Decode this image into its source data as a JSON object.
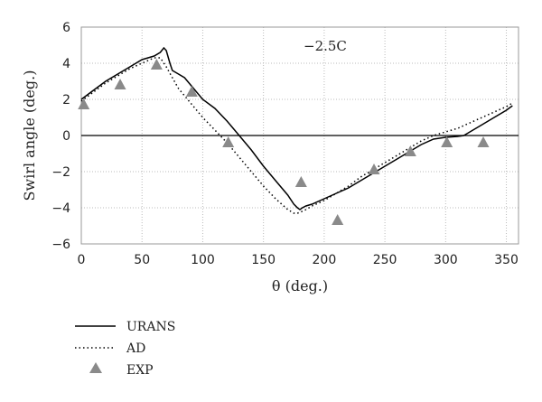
{
  "chart_data": {
    "type": "line",
    "annotation": "−2.5C",
    "xlabel": "θ (deg.)",
    "ylabel": "Swirl angle (deg.)",
    "xlim": [
      0,
      360
    ],
    "ylim": [
      -6,
      6
    ],
    "x_ticks": [
      "0",
      "50",
      "100",
      "150",
      "200",
      "250",
      "300",
      "350"
    ],
    "y_ticks": [
      "6",
      "4",
      "2",
      "0",
      "−2",
      "−4",
      "−6"
    ],
    "x_tick_values": [
      0,
      50,
      100,
      150,
      200,
      250,
      300,
      350
    ],
    "y_tick_values": [
      6,
      4,
      2,
      0,
      -2,
      -4,
      -6
    ],
    "grid": true,
    "legend_position": "bottom-left",
    "series": [
      {
        "name": "URANS",
        "style": "solid",
        "color": "#000000",
        "x": [
          0,
          10,
          20,
          30,
          40,
          50,
          60,
          65,
          68,
          70,
          73,
          75,
          80,
          85,
          90,
          95,
          100,
          110,
          120,
          130,
          140,
          150,
          160,
          170,
          175,
          178,
          180,
          182,
          185,
          190,
          200,
          210,
          220,
          230,
          240,
          250,
          260,
          270,
          280,
          290,
          300,
          310,
          315,
          320,
          330,
          340,
          350,
          355
        ],
        "y": [
          2.0,
          2.5,
          3.0,
          3.4,
          3.8,
          4.2,
          4.4,
          4.6,
          4.85,
          4.7,
          4.0,
          3.6,
          3.4,
          3.2,
          2.8,
          2.4,
          2.0,
          1.5,
          0.8,
          0.0,
          -0.8,
          -1.7,
          -2.5,
          -3.3,
          -3.8,
          -4.0,
          -4.1,
          -4.0,
          -3.9,
          -3.8,
          -3.5,
          -3.2,
          -2.9,
          -2.5,
          -2.1,
          -1.7,
          -1.3,
          -0.9,
          -0.5,
          -0.2,
          -0.1,
          -0.05,
          0.0,
          0.2,
          0.6,
          1.0,
          1.4,
          1.65
        ]
      },
      {
        "name": "AD",
        "style": "dotted",
        "color": "#000000",
        "x": [
          0,
          10,
          20,
          30,
          40,
          50,
          60,
          65,
          70,
          75,
          80,
          90,
          100,
          110,
          120,
          130,
          140,
          150,
          160,
          170,
          175,
          178,
          180,
          185,
          190,
          200,
          210,
          220,
          230,
          240,
          250,
          260,
          270,
          280,
          290,
          300,
          310,
          320,
          330,
          340,
          350,
          355
        ],
        "y": [
          1.9,
          2.4,
          2.9,
          3.3,
          3.7,
          4.0,
          4.3,
          4.3,
          3.8,
          3.2,
          2.6,
          1.8,
          1.0,
          0.3,
          -0.4,
          -1.2,
          -2.0,
          -2.8,
          -3.5,
          -4.1,
          -4.3,
          -4.3,
          -4.25,
          -4.1,
          -3.9,
          -3.6,
          -3.2,
          -2.8,
          -2.3,
          -1.9,
          -1.5,
          -1.1,
          -0.7,
          -0.3,
          0.0,
          0.2,
          0.4,
          0.7,
          1.0,
          1.3,
          1.6,
          1.8
        ]
      },
      {
        "name": "EXP",
        "style": "marker-triangle",
        "color": "#8a8a8a",
        "x": [
          2,
          32,
          62,
          91,
          121,
          181,
          211,
          241,
          271,
          301,
          331
        ],
        "y": [
          1.7,
          2.8,
          3.9,
          2.4,
          -0.4,
          -2.6,
          -4.7,
          -1.9,
          -0.9,
          -0.4,
          -0.4
        ]
      }
    ]
  }
}
